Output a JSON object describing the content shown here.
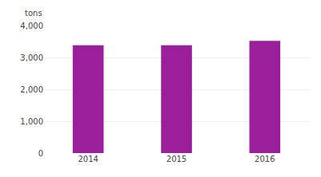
{
  "chart_data": {
    "type": "bar",
    "categories": [
      "2014",
      "2015",
      "2016"
    ],
    "values": [
      3380,
      3380,
      3520
    ],
    "color": "#9B1F9B",
    "ylabel": "tons",
    "ylim": [
      0,
      4000
    ],
    "yticks": [
      0,
      {
        "value": 1000,
        "label": "1,000"
      },
      {
        "value": 2000,
        "label": "2,000"
      },
      {
        "value": 3000,
        "label": "3,000"
      },
      {
        "value": 4000,
        "label": "4,000"
      }
    ],
    "grid": true
  }
}
